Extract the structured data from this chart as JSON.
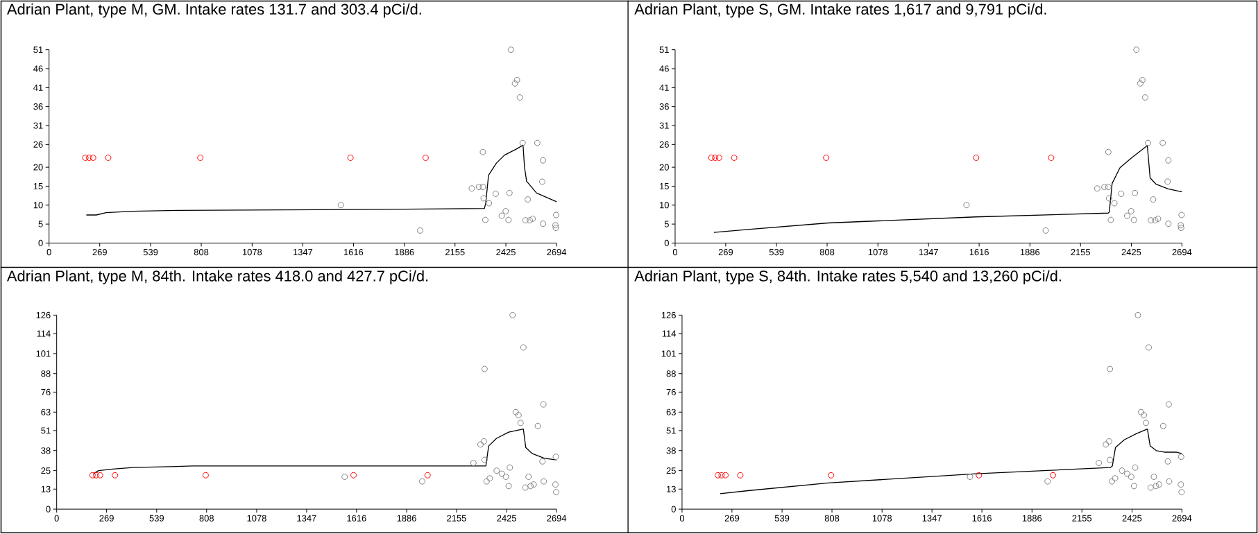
{
  "chart_data": [
    {
      "type": "scatter",
      "title": "Adrian Plant, type M, GM.  Intake rates 131.7 and 303.4 pCi/d.",
      "xlim": [
        0,
        2694
      ],
      "ylim": [
        0,
        51
      ],
      "xticks": [
        0,
        269,
        539,
        808,
        1078,
        1347,
        1616,
        1886,
        2155,
        2425,
        2694
      ],
      "yticks": [
        0,
        5,
        10,
        15,
        20,
        26,
        31,
        36,
        41,
        46,
        51
      ],
      "marker": "circle",
      "series": [
        {
          "color": "#808080",
          "x": [
            1549,
            1970,
            2303,
            2244,
            2282,
            2303,
            2307,
            2316,
            2335,
            2371,
            2403,
            2424,
            2439,
            2444,
            2452,
            2473,
            2484,
            2499,
            2514,
            2541,
            2529,
            2552,
            2567,
            2592,
            2622,
            2618,
            2622,
            2692,
            2688,
            2690
          ],
          "values": [
            10.0,
            3.3,
            24.0,
            14.4,
            14.8,
            14.8,
            11.8,
            6.1,
            10.5,
            13.0,
            7.2,
            8.4,
            6.1,
            13.2,
            51,
            42.1,
            43.0,
            38.4,
            26.4,
            11.5,
            6.0,
            6.0,
            6.4,
            26.4,
            21.8,
            16.2,
            5.1,
            7.4,
            4.7,
            4.0
          ]
        },
        {
          "color": "#ff0000",
          "x": [
            193,
            213,
            234,
            314,
            803,
            1600,
            1999
          ],
          "values": [
            22.5,
            22.5,
            22.5,
            22.5,
            22.5,
            22.5,
            22.5
          ]
        },
        {
          "type": "line",
          "color": "#000000",
          "marker": "none",
          "x": [
            198,
            251,
            303,
            442,
            686,
            1780,
            2311,
            2318,
            2333,
            2375,
            2418,
            2481,
            2516,
            2524,
            2535,
            2588,
            2694
          ],
          "values": [
            7.4,
            7.4,
            8.0,
            8.4,
            8.6,
            8.9,
            9.1,
            10.5,
            17.9,
            21.1,
            23.2,
            24.8,
            25.8,
            20.0,
            16.3,
            13.2,
            10.9
          ]
        }
      ]
    },
    {
      "type": "scatter",
      "title": "Adrian Plant, type S, GM.  Intake rates 1,617 and 9,791 pCi/d.",
      "xlim": [
        0,
        2694
      ],
      "ylim": [
        0,
        51
      ],
      "xticks": [
        0,
        269,
        539,
        808,
        1078,
        1347,
        1616,
        1886,
        2155,
        2425,
        2694
      ],
      "yticks": [
        0,
        5,
        10,
        15,
        20,
        26,
        31,
        36,
        41,
        46,
        51
      ],
      "marker": "circle",
      "series": [
        {
          "color": "#808080",
          "x": [
            1549,
            1970,
            2303,
            2244,
            2282,
            2303,
            2307,
            2316,
            2335,
            2371,
            2403,
            2424,
            2439,
            2444,
            2452,
            2473,
            2484,
            2499,
            2514,
            2541,
            2529,
            2552,
            2567,
            2592,
            2622,
            2618,
            2622,
            2692,
            2688,
            2690
          ],
          "values": [
            10.0,
            3.3,
            24.0,
            14.4,
            14.8,
            14.8,
            11.8,
            6.1,
            10.5,
            13.0,
            7.2,
            8.4,
            6.1,
            13.2,
            51,
            42.1,
            43.0,
            38.4,
            26.4,
            11.5,
            6.0,
            6.0,
            6.4,
            26.4,
            21.8,
            16.2,
            5.1,
            7.4,
            4.7,
            4.0
          ]
        },
        {
          "color": "#ff0000",
          "x": [
            193,
            213,
            234,
            314,
            803,
            1600,
            1999
          ],
          "values": [
            22.5,
            22.5,
            22.5,
            22.5,
            22.5,
            22.5,
            22.5
          ]
        },
        {
          "type": "line",
          "color": "#000000",
          "marker": "none",
          "x": [
            206,
            387,
            813,
            1599,
            2302,
            2308,
            2323,
            2365,
            2429,
            2510,
            2525,
            2557,
            2621,
            2694
          ],
          "values": [
            2.8,
            3.6,
            5.3,
            6.9,
            7.9,
            8.2,
            15.7,
            19.9,
            22.6,
            25.7,
            17.2,
            15.5,
            14.3,
            13.5
          ]
        }
      ]
    },
    {
      "type": "scatter",
      "title": "Adrian Plant, type M, 84th.  Intake rates 418.0 and 427.7 pCi/d.",
      "xlim": [
        0,
        2694
      ],
      "ylim": [
        0,
        126
      ],
      "xticks": [
        0,
        269,
        539,
        808,
        1078,
        1347,
        1616,
        1886,
        2155,
        2425,
        2694
      ],
      "yticks": [
        0,
        13,
        25,
        38,
        51,
        63,
        76,
        88,
        101,
        114,
        126
      ],
      "marker": "circle",
      "series": [
        {
          "color": "#808080",
          "x": [
            1552,
            1970,
            2246,
            2284,
            2302,
            2306,
            2306,
            2317,
            2334,
            2371,
            2399,
            2421,
            2436,
            2442,
            2457,
            2474,
            2489,
            2500,
            2515,
            2526,
            2543,
            2554,
            2571,
            2593,
            2623,
            2618,
            2625,
            2690,
            2688,
            2692
          ],
          "values": [
            21,
            18,
            30,
            42,
            44,
            91,
            32,
            18,
            20,
            25,
            23,
            21,
            15,
            27,
            126,
            63,
            61,
            56,
            105,
            14,
            21,
            15,
            16,
            54,
            68,
            31,
            18,
            34,
            16,
            11
          ]
        },
        {
          "color": "#ff0000",
          "x": [
            193,
            213,
            234,
            314,
            803,
            1600,
            1999
          ],
          "values": [
            22,
            22,
            22,
            22,
            22,
            22,
            22
          ]
        },
        {
          "type": "line",
          "color": "#000000",
          "marker": "none",
          "x": [
            198,
            226,
            302,
            410,
            733,
            1423,
            2313,
            2328,
            2371,
            2436,
            2515,
            2528,
            2564,
            2629,
            2694
          ],
          "values": [
            23,
            25,
            26,
            27,
            28,
            28,
            28,
            41,
            46,
            50,
            52,
            40,
            36,
            33,
            32
          ]
        }
      ]
    },
    {
      "type": "scatter",
      "title": "Adrian Plant, type S, 84th.  Intake rates 5,540 and 13,260 pCi/d.",
      "xlim": [
        0,
        2694
      ],
      "ylim": [
        0,
        126
      ],
      "xticks": [
        0,
        269,
        539,
        808,
        1078,
        1347,
        1616,
        1886,
        2155,
        2425,
        2694
      ],
      "yticks": [
        0,
        13,
        25,
        38,
        51,
        63,
        76,
        88,
        101,
        114,
        126
      ],
      "marker": "circle",
      "series": [
        {
          "color": "#808080",
          "x": [
            1552,
            1970,
            2246,
            2284,
            2302,
            2306,
            2306,
            2317,
            2334,
            2371,
            2399,
            2421,
            2436,
            2442,
            2457,
            2474,
            2489,
            2500,
            2515,
            2526,
            2543,
            2554,
            2571,
            2593,
            2623,
            2618,
            2625,
            2690,
            2688,
            2692
          ],
          "values": [
            21,
            18,
            30,
            42,
            44,
            91,
            32,
            18,
            20,
            25,
            23,
            21,
            15,
            27,
            126,
            63,
            61,
            56,
            105,
            14,
            21,
            15,
            16,
            54,
            68,
            31,
            18,
            34,
            16,
            11
          ]
        },
        {
          "color": "#ff0000",
          "x": [
            193,
            213,
            234,
            314,
            803,
            1600,
            1999
          ],
          "values": [
            22,
            22,
            22,
            22,
            22,
            22,
            22
          ]
        },
        {
          "type": "line",
          "color": "#000000",
          "marker": "none",
          "x": [
            205,
            356,
            788,
            1585,
            2308,
            2319,
            2336,
            2383,
            2448,
            2508,
            2523,
            2556,
            2599,
            2663,
            2694
          ],
          "values": [
            10,
            12,
            17,
            23,
            27,
            28,
            40,
            45,
            49,
            52,
            41,
            38,
            37,
            37,
            36
          ]
        }
      ]
    }
  ]
}
